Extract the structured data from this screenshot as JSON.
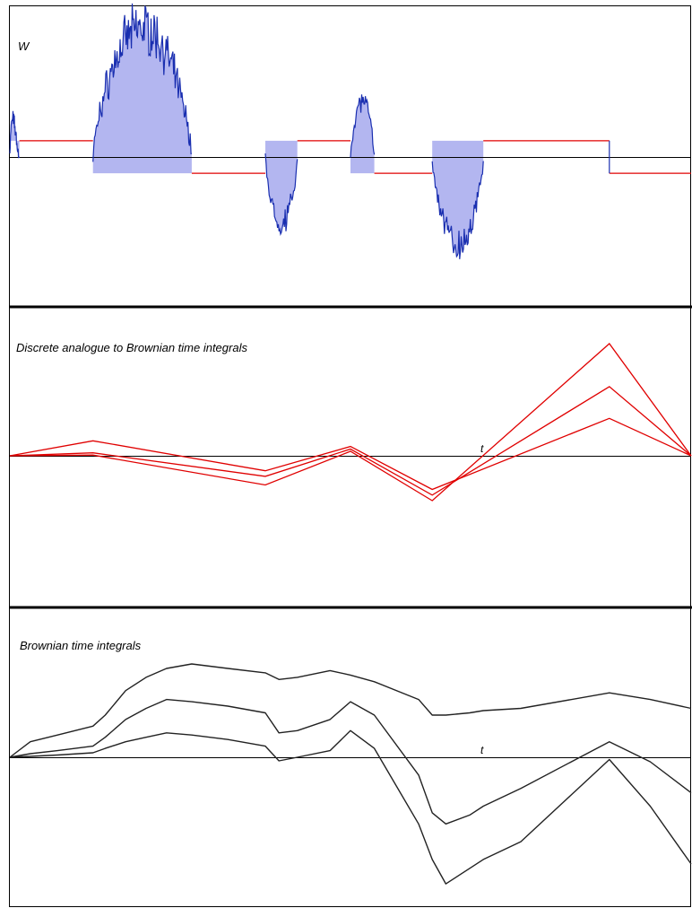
{
  "chart_data": [
    {
      "type": "area",
      "title": "",
      "ylabel": "W",
      "xlabel": "",
      "grid": false,
      "legend": "none",
      "colors": {
        "path": "#1a2fb0",
        "fill": "#b3b6f0",
        "step": "#e00000",
        "axis": "#000000"
      },
      "ylim": [
        -1.25,
        1.85
      ],
      "xlim": [
        0,
        1
      ],
      "zero_crossings": [
        0,
        0.014,
        0.122,
        0.267,
        0.375,
        0.422,
        0.5,
        0.535,
        0.62,
        0.695,
        0.88,
        1
      ],
      "excursions": [
        {
          "t0": 0,
          "t1": 0.014,
          "sign": 1,
          "peak": 0.9
        },
        {
          "t0": 0.122,
          "t1": 0.267,
          "sign": 1,
          "peak": 1.85
        },
        {
          "t0": 0.375,
          "t1": 0.422,
          "sign": -1,
          "peak": 0.95
        },
        {
          "t0": 0.5,
          "t1": 0.535,
          "sign": 1,
          "peak": 0.8
        },
        {
          "t0": 0.62,
          "t1": 0.695,
          "sign": -1,
          "peak": 1.25
        }
      ],
      "step_levels": [
        {
          "t0": 0.014,
          "t1": 0.122,
          "level": 0.2
        },
        {
          "t0": 0.267,
          "t1": 0.375,
          "level": -0.2
        },
        {
          "t0": 0.422,
          "t1": 0.5,
          "level": 0.2
        },
        {
          "t0": 0.535,
          "t1": 0.62,
          "level": -0.2
        },
        {
          "t0": 0.695,
          "t1": 0.88,
          "level": 0.2
        },
        {
          "t0": 0.88,
          "t1": 1,
          "level": -0.2
        }
      ]
    },
    {
      "type": "line",
      "title": "Discrete analogue to Brownian time integrals",
      "xlabel": "t",
      "ylabel": "",
      "ylim": [
        -1.6,
        2.9
      ],
      "grid": false,
      "legend": "none",
      "color": "#e00000",
      "x": [
        0,
        0.122,
        0.375,
        0.5,
        0.62,
        0.88,
        1
      ],
      "series": [
        {
          "values": [
            0,
            0.4,
            -0.4,
            0.25,
            -0.9,
            1.0,
            0
          ]
        },
        {
          "values": [
            0,
            0.08,
            -0.55,
            0.18,
            -1.05,
            1.85,
            0
          ]
        },
        {
          "values": [
            0,
            0.02,
            -0.78,
            0.12,
            -1.2,
            3.0,
            0
          ]
        }
      ]
    },
    {
      "type": "line",
      "title": "Brownian time integrals",
      "xlabel": "t",
      "ylabel": "",
      "ylim": [
        -3.0,
        2.4
      ],
      "grid": false,
      "legend": "none",
      "color": "#222222",
      "x": [
        0,
        0.03,
        0.07,
        0.122,
        0.14,
        0.17,
        0.2,
        0.23,
        0.267,
        0.32,
        0.375,
        0.395,
        0.422,
        0.47,
        0.5,
        0.535,
        0.6,
        0.62,
        0.64,
        0.675,
        0.695,
        0.75,
        0.88,
        0.94,
        1
      ],
      "series": [
        {
          "values": [
            0,
            0.35,
            0.5,
            0.7,
            0.95,
            1.5,
            1.8,
            2.0,
            2.1,
            2.0,
            1.9,
            1.75,
            1.8,
            1.95,
            1.85,
            1.7,
            1.3,
            0.95,
            0.95,
            1.0,
            1.05,
            1.1,
            1.45,
            1.3,
            1.1
          ]
        },
        {
          "values": [
            0,
            0.08,
            0.15,
            0.25,
            0.45,
            0.85,
            1.1,
            1.3,
            1.25,
            1.15,
            1.0,
            0.55,
            0.6,
            0.85,
            1.25,
            0.95,
            -0.4,
            -1.25,
            -1.5,
            -1.3,
            -1.1,
            -0.7,
            0.35,
            -0.1,
            -0.8
          ]
        },
        {
          "values": [
            0,
            0.02,
            0.05,
            0.1,
            0.2,
            0.35,
            0.45,
            0.55,
            0.5,
            0.4,
            0.25,
            -0.08,
            0.0,
            0.15,
            0.6,
            0.2,
            -1.5,
            -2.3,
            -2.85,
            -2.5,
            -2.3,
            -1.9,
            -0.05,
            -1.1,
            -2.4
          ]
        }
      ]
    }
  ]
}
